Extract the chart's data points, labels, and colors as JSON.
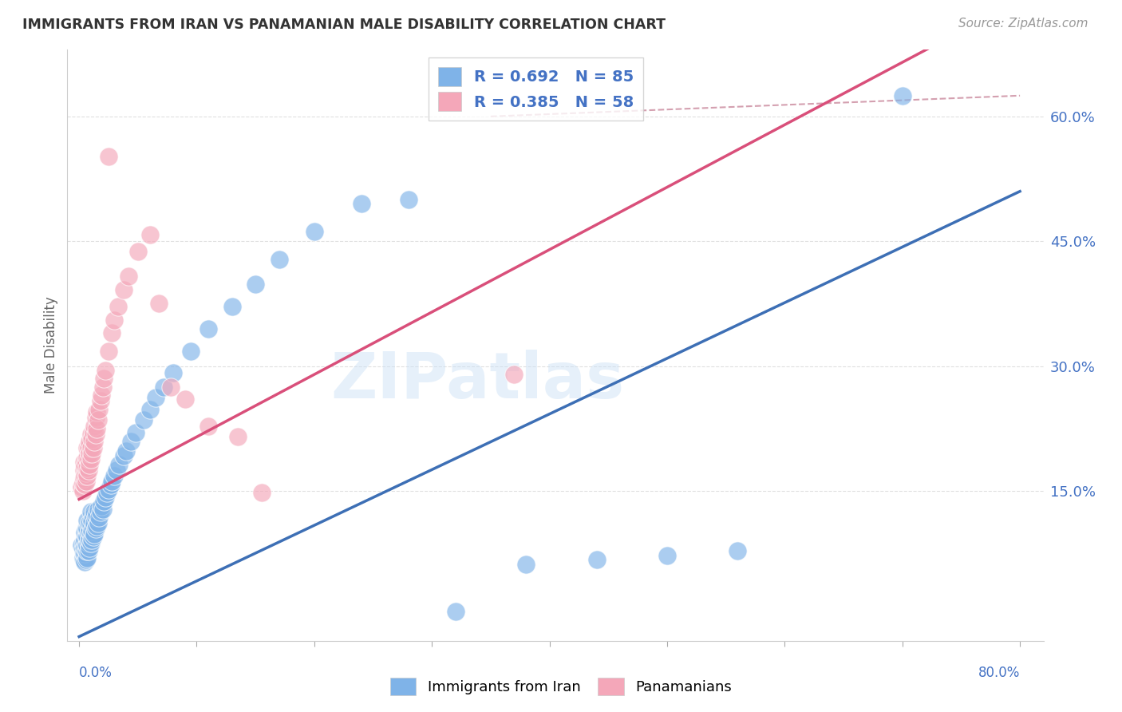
{
  "title": "IMMIGRANTS FROM IRAN VS PANAMANIAN MALE DISABILITY CORRELATION CHART",
  "source": "Source: ZipAtlas.com",
  "ylabel": "Male Disability",
  "blue_color": "#7fb3e8",
  "pink_color": "#f4a7b9",
  "blue_line_color": "#3d6fb5",
  "pink_line_color": "#d94f7a",
  "dashed_line_color": "#d4a0b0",
  "watermark": "ZIPatlas",
  "xlim": [
    0.0,
    0.8
  ],
  "ylim": [
    -0.03,
    0.68
  ],
  "ytick_vals": [
    0.15,
    0.3,
    0.45,
    0.6
  ],
  "ytick_labels": [
    "15.0%",
    "30.0%",
    "45.0%",
    "60.0%"
  ],
  "blue_line_x0": 0.0,
  "blue_line_y0": -0.025,
  "blue_line_x1": 0.8,
  "blue_line_y1": 0.51,
  "pink_line_x0": 0.0,
  "pink_line_y0": 0.14,
  "pink_line_x1": 0.4,
  "pink_line_y1": 0.44,
  "dash_line_x0": 0.4,
  "dash_line_y0": 0.6,
  "dash_line_x1": 0.8,
  "dash_line_y1": 0.62,
  "iran_x": [
    0.002,
    0.003,
    0.003,
    0.004,
    0.004,
    0.004,
    0.005,
    0.005,
    0.005,
    0.005,
    0.005,
    0.006,
    0.006,
    0.006,
    0.006,
    0.006,
    0.007,
    0.007,
    0.007,
    0.007,
    0.007,
    0.007,
    0.008,
    0.008,
    0.008,
    0.008,
    0.009,
    0.009,
    0.009,
    0.009,
    0.01,
    0.01,
    0.01,
    0.01,
    0.011,
    0.011,
    0.011,
    0.012,
    0.012,
    0.012,
    0.013,
    0.013,
    0.013,
    0.014,
    0.014,
    0.015,
    0.015,
    0.016,
    0.016,
    0.017,
    0.018,
    0.019,
    0.02,
    0.021,
    0.022,
    0.024,
    0.025,
    0.027,
    0.028,
    0.03,
    0.032,
    0.034,
    0.038,
    0.04,
    0.044,
    0.048,
    0.055,
    0.06,
    0.065,
    0.072,
    0.08,
    0.095,
    0.11,
    0.13,
    0.15,
    0.17,
    0.2,
    0.24,
    0.28,
    0.32,
    0.38,
    0.44,
    0.5,
    0.56,
    0.7
  ],
  "iran_y": [
    0.085,
    0.07,
    0.08,
    0.068,
    0.075,
    0.088,
    0.065,
    0.075,
    0.082,
    0.092,
    0.1,
    0.068,
    0.078,
    0.085,
    0.095,
    0.105,
    0.07,
    0.078,
    0.085,
    0.095,
    0.105,
    0.115,
    0.078,
    0.088,
    0.098,
    0.108,
    0.082,
    0.092,
    0.102,
    0.112,
    0.088,
    0.098,
    0.11,
    0.125,
    0.092,
    0.102,
    0.115,
    0.095,
    0.108,
    0.12,
    0.098,
    0.112,
    0.125,
    0.105,
    0.118,
    0.108,
    0.122,
    0.112,
    0.128,
    0.118,
    0.125,
    0.132,
    0.128,
    0.138,
    0.142,
    0.148,
    0.152,
    0.158,
    0.162,
    0.168,
    0.175,
    0.182,
    0.192,
    0.198,
    0.21,
    0.22,
    0.235,
    0.248,
    0.262,
    0.275,
    0.292,
    0.318,
    0.345,
    0.372,
    0.398,
    0.428,
    0.462,
    0.495,
    0.5,
    0.005,
    0.062,
    0.068,
    0.072,
    0.078,
    0.625
  ],
  "panama_x": [
    0.002,
    0.003,
    0.003,
    0.004,
    0.004,
    0.004,
    0.005,
    0.005,
    0.005,
    0.006,
    0.006,
    0.006,
    0.007,
    0.007,
    0.007,
    0.007,
    0.008,
    0.008,
    0.008,
    0.009,
    0.009,
    0.009,
    0.01,
    0.01,
    0.01,
    0.011,
    0.011,
    0.012,
    0.012,
    0.013,
    0.013,
    0.014,
    0.014,
    0.015,
    0.015,
    0.016,
    0.017,
    0.018,
    0.019,
    0.02,
    0.021,
    0.022,
    0.025,
    0.028,
    0.03,
    0.033,
    0.038,
    0.042,
    0.05,
    0.06,
    0.068,
    0.078,
    0.09,
    0.11,
    0.135,
    0.155,
    0.37,
    0.025
  ],
  "panama_y": [
    0.155,
    0.15,
    0.16,
    0.165,
    0.175,
    0.185,
    0.158,
    0.168,
    0.18,
    0.162,
    0.172,
    0.185,
    0.168,
    0.178,
    0.19,
    0.202,
    0.175,
    0.188,
    0.202,
    0.182,
    0.195,
    0.21,
    0.188,
    0.202,
    0.218,
    0.195,
    0.212,
    0.202,
    0.22,
    0.21,
    0.228,
    0.218,
    0.238,
    0.225,
    0.245,
    0.235,
    0.248,
    0.258,
    0.265,
    0.275,
    0.285,
    0.295,
    0.318,
    0.34,
    0.355,
    0.372,
    0.392,
    0.408,
    0.438,
    0.458,
    0.375,
    0.275,
    0.26,
    0.228,
    0.215,
    0.148,
    0.29,
    0.552
  ]
}
